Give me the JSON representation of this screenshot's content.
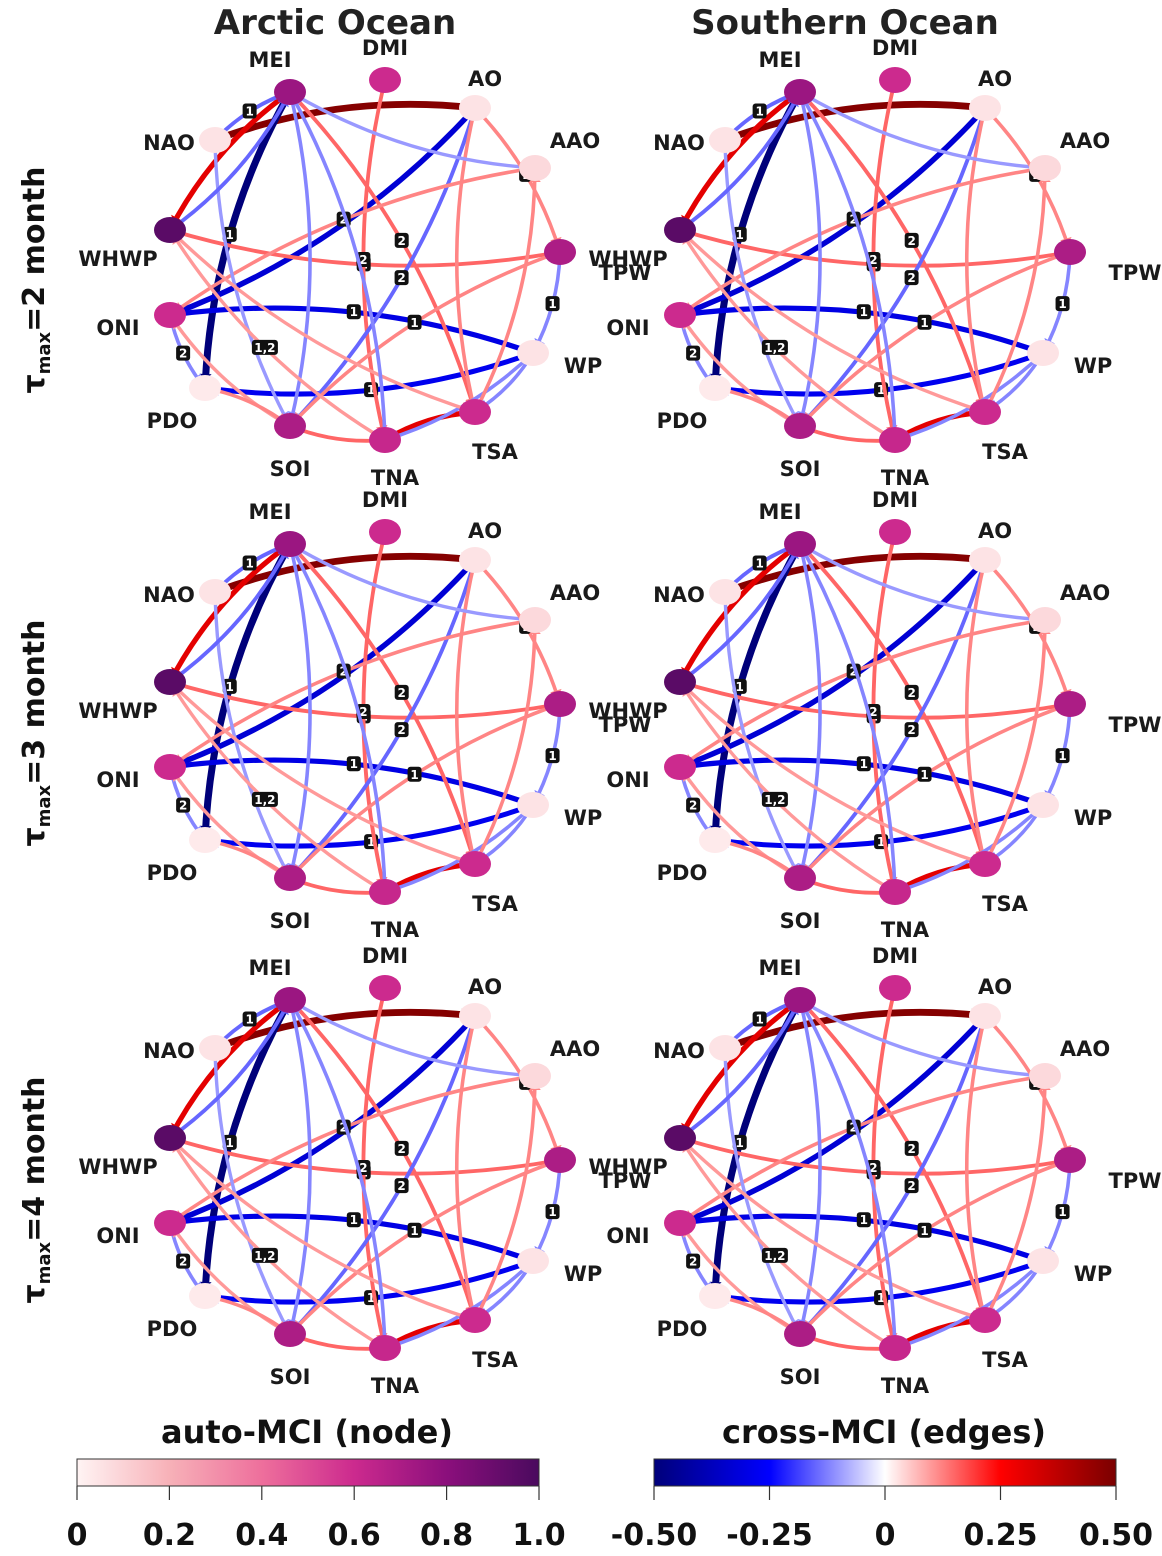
{
  "columns": [
    "Arctic Ocean",
    "Southern Ocean"
  ],
  "rows": [
    {
      "tau_symbol": "τ",
      "tau_sub": "max",
      "text": "=2 month"
    },
    {
      "tau_symbol": "τ",
      "tau_sub": "max",
      "text": "=3 month"
    },
    {
      "tau_symbol": "τ",
      "tau_sub": "max",
      "text": "=4 month"
    }
  ],
  "nodes": [
    "MEI",
    "DMI",
    "AO",
    "AAO",
    "TPW",
    "WP",
    "TSA",
    "TNA",
    "SOI",
    "PDO",
    "ONI",
    "WHWP",
    "NAO"
  ],
  "highlight_node": "TPW",
  "colors": {
    "highlight_label": "#1a1adc",
    "edge_label_bg": "#111111"
  },
  "node_values": {
    "MEI": 0.75,
    "DMI": 0.6,
    "AO": 0.05,
    "AAO": 0.08,
    "TPW": 0.7,
    "WP": 0.05,
    "TSA": 0.6,
    "TNA": 0.62,
    "SOI": 0.7,
    "PDO": 0.03,
    "ONI": 0.6,
    "WHWP": 0.95,
    "NAO": 0.05
  },
  "edges": [
    {
      "from": "NAO",
      "to": "AO",
      "value": 0.48,
      "lag": ""
    },
    {
      "from": "MEI",
      "to": "PDO",
      "value": -0.5,
      "lag": "1"
    },
    {
      "from": "AO",
      "to": "ONI",
      "value": -0.33,
      "lag": ""
    },
    {
      "from": "WP",
      "to": "ONI",
      "value": -0.3,
      "lag": "1"
    },
    {
      "from": "WP",
      "to": "PDO",
      "value": -0.28,
      "lag": "1"
    },
    {
      "from": "MEI",
      "to": "WHWP",
      "value": 0.3,
      "lag": ""
    },
    {
      "from": "NAO",
      "to": "MEI",
      "value": -0.15,
      "lag": "1"
    },
    {
      "from": "WHWP",
      "to": "TPW",
      "value": 0.15,
      "lag": "1"
    },
    {
      "from": "TNA",
      "to": "TSA",
      "value": 0.3,
      "lag": ""
    },
    {
      "from": "SOI",
      "to": "TNA",
      "value": 0.15,
      "lag": ""
    },
    {
      "from": "MEI",
      "to": "TSA",
      "value": 0.15,
      "lag": "2"
    },
    {
      "from": "DMI",
      "to": "TNA",
      "value": 0.15,
      "lag": "2"
    },
    {
      "from": "AO",
      "to": "SOI",
      "value": -0.15,
      "lag": "2"
    },
    {
      "from": "AAO",
      "to": "ONI",
      "value": 0.12,
      "lag": "2"
    },
    {
      "from": "TPW",
      "to": "WP",
      "value": -0.12,
      "lag": "1"
    },
    {
      "from": "AO",
      "to": "TSA",
      "value": 0.12,
      "lag": ""
    },
    {
      "from": "MEI",
      "to": "SOI",
      "value": -0.12,
      "lag": ""
    },
    {
      "from": "NAO",
      "to": "SOI",
      "value": -0.1,
      "lag": ""
    },
    {
      "from": "AAO",
      "to": "MEI",
      "value": -0.1,
      "lag": ""
    },
    {
      "from": "TPW",
      "to": "SOI",
      "value": 0.12,
      "lag": "1"
    },
    {
      "from": "WP",
      "to": "TNA",
      "value": -0.12,
      "lag": ""
    },
    {
      "from": "ONI",
      "to": "PDO",
      "value": -0.12,
      "lag": "2"
    },
    {
      "from": "TNA",
      "to": "WHWP",
      "value": 0.1,
      "lag": "1,2"
    },
    {
      "from": "WHWP",
      "to": "TSA",
      "value": 0.1,
      "lag": ""
    },
    {
      "from": "SOI",
      "to": "ONI",
      "value": 0.1,
      "lag": ""
    },
    {
      "from": "TNA",
      "to": "MEI",
      "value": -0.12,
      "lag": ""
    },
    {
      "from": "AO",
      "to": "TPW",
      "value": 0.12,
      "lag": "1"
    },
    {
      "from": "TSA",
      "to": "AAO",
      "value": 0.12,
      "lag": ""
    },
    {
      "from": "PDO",
      "to": "SOI",
      "value": 0.12,
      "lag": ""
    },
    {
      "from": "WHWP",
      "to": "MEI",
      "value": -0.15,
      "lag": ""
    },
    {
      "from": "WP",
      "to": "TSA",
      "value": -0.12,
      "lag": ""
    }
  ],
  "colorbars": [
    {
      "title": "auto-MCI (node)",
      "ticks": [
        "0",
        "0.2",
        "0.4",
        "0.6",
        "0.8",
        "1.0"
      ],
      "stops": [
        "#fff4f4",
        "#f7b1b8",
        "#ee6f9c",
        "#cc2a8e",
        "#8b0f7c",
        "#4a0a5e"
      ]
    },
    {
      "title": "cross-MCI (edges)",
      "ticks": [
        "-0.50",
        "-0.25",
        "0",
        "0.25",
        "0.50"
      ],
      "stops": [
        "#00007a",
        "#0000ff",
        "#ffffff",
        "#ff0000",
        "#7a0000"
      ]
    }
  ]
}
